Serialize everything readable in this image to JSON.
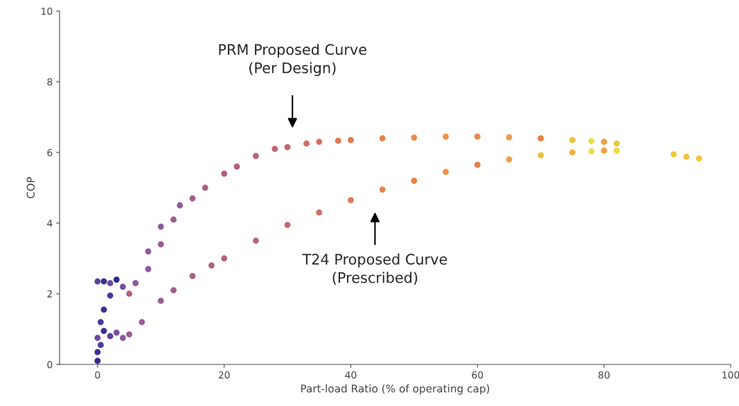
{
  "chart_data": {
    "type": "scatter",
    "xlabel": "Part-load Ratio (% of operating cap)",
    "ylabel": "COP",
    "xlim": [
      -6,
      100
    ],
    "xticks": [
      0,
      20,
      40,
      60,
      80,
      100
    ],
    "ylim": [
      0,
      10
    ],
    "yticks": [
      0,
      2,
      4,
      6,
      8,
      10
    ],
    "grid": false,
    "legend": false,
    "marker": "circle",
    "annotations": [
      "PRM Proposed Curve\n(Per Design)",
      "T24 Proposed Curve\n(Prescribed)"
    ],
    "series": [
      {
        "x": [
          0,
          0,
          0.5,
          0,
          1,
          0.5,
          1,
          2,
          0,
          1,
          2,
          3
        ],
        "values": [
          0.1,
          0.35,
          0.55,
          0.75,
          0.95,
          1.2,
          1.55,
          1.95,
          2.35,
          2.35,
          2.3,
          2.4
        ],
        "colors": [
          "#2e2a8a",
          "#3b2f94",
          "#4a3a9e",
          "#6a4aa0",
          "#3b2f94",
          "#4a3a9e",
          "#3b2f94",
          "#4a3a9e",
          "#5a40a0",
          "#3b2f94",
          "#6a4aa0",
          "#2e2a8a"
        ]
      },
      {
        "x": [
          4,
          5,
          6,
          8,
          8,
          10,
          10,
          12,
          13,
          15,
          17,
          20,
          22,
          25,
          28,
          30,
          33,
          35,
          38,
          40,
          45,
          50,
          55,
          60,
          65,
          70,
          75,
          78,
          80,
          82
        ],
        "values": [
          2.2,
          2.0,
          2.3,
          2.7,
          3.2,
          3.4,
          3.9,
          4.1,
          4.5,
          4.7,
          5.0,
          5.4,
          5.6,
          5.9,
          6.1,
          6.15,
          6.25,
          6.3,
          6.33,
          6.35,
          6.4,
          6.42,
          6.45,
          6.45,
          6.43,
          6.4,
          6.35,
          6.32,
          6.3,
          6.25
        ],
        "colors": [
          "#7a4e9e",
          "#b86078",
          "#8a5a9e",
          "#8a5a9e",
          "#8e5a9a",
          "#9a5c92",
          "#8a5a9e",
          "#9a5c92",
          "#8e5a9a",
          "#a05c8a",
          "#a65e86",
          "#b06080",
          "#b46080",
          "#b8627a",
          "#c06474",
          "#c46672",
          "#d06e66",
          "#d8725e",
          "#e07a55",
          "#e27a52",
          "#e8844a",
          "#e88a48",
          "#f0904a",
          "#e8844a",
          "#f09848",
          "#e88040",
          "#f0c040",
          "#e8e048",
          "#f0a040",
          "#e8c838"
        ]
      },
      {
        "x": [
          2,
          3,
          4,
          5,
          7,
          10,
          12,
          15,
          18,
          20,
          25,
          30,
          35,
          40,
          45,
          50,
          55,
          60,
          65,
          70,
          75,
          78,
          80,
          82,
          91,
          93,
          95
        ],
        "values": [
          0.8,
          0.9,
          0.75,
          0.85,
          1.2,
          1.8,
          2.1,
          2.5,
          2.8,
          3.0,
          3.5,
          3.95,
          4.3,
          4.65,
          4.95,
          5.2,
          5.45,
          5.65,
          5.8,
          5.92,
          6.0,
          6.03,
          6.05,
          6.05,
          5.95,
          5.88,
          5.83
        ],
        "colors": [
          "#5a40a0",
          "#7a4e9e",
          "#8a5a9e",
          "#9a5c92",
          "#9a5c92",
          "#9c5e90",
          "#a25e8a",
          "#a86084",
          "#b06080",
          "#b4627c",
          "#bc6478",
          "#c46672",
          "#d06e66",
          "#e07a55",
          "#e8844a",
          "#e88040",
          "#f0904a",
          "#e87a48",
          "#f0a040",
          "#e8c040",
          "#f0b040",
          "#e8e048",
          "#f0a040",
          "#f0d840",
          "#f0c838",
          "#f0c038",
          "#f0c838"
        ]
      }
    ]
  }
}
